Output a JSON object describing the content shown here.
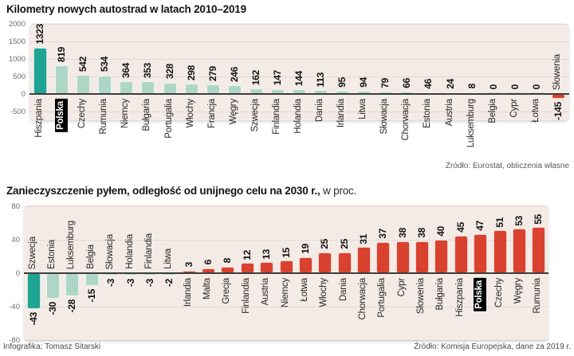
{
  "palette": {
    "dark_teal": "#1fa392",
    "light_teal": "#aed6c6",
    "red": "#d8422f",
    "plot_bg": "#f4ebe7",
    "zero_bar_fill": "#f6fbf8",
    "zero_bar_border": "#c9ded2",
    "highlight_badge_bg": "#000000",
    "highlight_badge_text": "#ffffff"
  },
  "chart_data": [
    {
      "type": "bar",
      "title": "Kilometry nowych autostrad w latach 2010–2019",
      "source": "Źródło: Eurostat, obliczenia własne",
      "ylim": [
        -500,
        2000
      ],
      "yticks": [
        2000,
        1500,
        1000,
        500,
        0,
        -500
      ],
      "legend_position": "none",
      "grid": true,
      "series": [
        {
          "name": "Hiszpania",
          "value": 1323,
          "color": "dark_teal"
        },
        {
          "name": "Polska",
          "value": 819,
          "highlight": true
        },
        {
          "name": "Czechy",
          "value": 542
        },
        {
          "name": "Rumunia",
          "value": 534
        },
        {
          "name": "Niemcy",
          "value": 364
        },
        {
          "name": "Bułgaria",
          "value": 353
        },
        {
          "name": "Portugalia",
          "value": 328
        },
        {
          "name": "Włochy",
          "value": 298
        },
        {
          "name": "Francja",
          "value": 279
        },
        {
          "name": "Węgry",
          "value": 246
        },
        {
          "name": "Szwecja",
          "value": 162
        },
        {
          "name": "Finlandia",
          "value": 147
        },
        {
          "name": "Holandia",
          "value": 144
        },
        {
          "name": "Dania",
          "value": 113
        },
        {
          "name": "Irlandia",
          "value": 95
        },
        {
          "name": "Litwa",
          "value": 94
        },
        {
          "name": "Słowacja",
          "value": 79
        },
        {
          "name": "Chorwacja",
          "value": 66
        },
        {
          "name": "Estonia",
          "value": 46
        },
        {
          "name": "Austria",
          "value": 24
        },
        {
          "name": "Luksemburg",
          "value": 8
        },
        {
          "name": "Belgia",
          "value": 0
        },
        {
          "name": "Cypr",
          "value": 0
        },
        {
          "name": "Łotwa",
          "value": 0
        },
        {
          "name": "Słowenia",
          "value": -145,
          "color": "red"
        }
      ]
    },
    {
      "type": "bar",
      "title": "Zanieczyszczenie pyłem, odległość od unijnego celu na 2030 r.,",
      "title_suffix": " w proc.",
      "ylim": [
        -80,
        80
      ],
      "yticks": [
        80,
        40,
        0,
        -40,
        -80
      ],
      "legend_position": "none",
      "grid": true,
      "series": [
        {
          "name": "Szwecja",
          "value": -43,
          "color": "dark_teal"
        },
        {
          "name": "Estonia",
          "value": -30
        },
        {
          "name": "Luksemburg",
          "value": -28
        },
        {
          "name": "Belgia",
          "value": -15
        },
        {
          "name": "Słowacja",
          "value": -3
        },
        {
          "name": "Holandia",
          "value": -3
        },
        {
          "name": "Finlandia",
          "value": -3
        },
        {
          "name": "Litwa",
          "value": -2
        },
        {
          "name": "Irlandia",
          "value": 3
        },
        {
          "name": "Malta",
          "value": 6
        },
        {
          "name": "Grecja",
          "value": 8
        },
        {
          "name": "Finlandia",
          "value": 12
        },
        {
          "name": "Austria",
          "value": 13
        },
        {
          "name": "Niemcy",
          "value": 15
        },
        {
          "name": "Łotwa",
          "value": 19
        },
        {
          "name": "Włochy",
          "value": 25
        },
        {
          "name": "Dania",
          "value": 25
        },
        {
          "name": "Chorwacja",
          "value": 31
        },
        {
          "name": "Portugalia",
          "value": 37
        },
        {
          "name": "Cypr",
          "value": 38
        },
        {
          "name": "Słowenia",
          "value": 38
        },
        {
          "name": "Bułgaria",
          "value": 40
        },
        {
          "name": "Hiszpania",
          "value": 45
        },
        {
          "name": "Polska",
          "value": 47,
          "highlight": true
        },
        {
          "name": "Czechy",
          "value": 51
        },
        {
          "name": "Węgry",
          "value": 53
        },
        {
          "name": "Rumunia",
          "value": 55
        }
      ]
    }
  ],
  "footer": {
    "credit": "Infografika: Tomasz Sitarski",
    "source": "Źródło: Komisja Europejska, dane za 2019 r."
  }
}
